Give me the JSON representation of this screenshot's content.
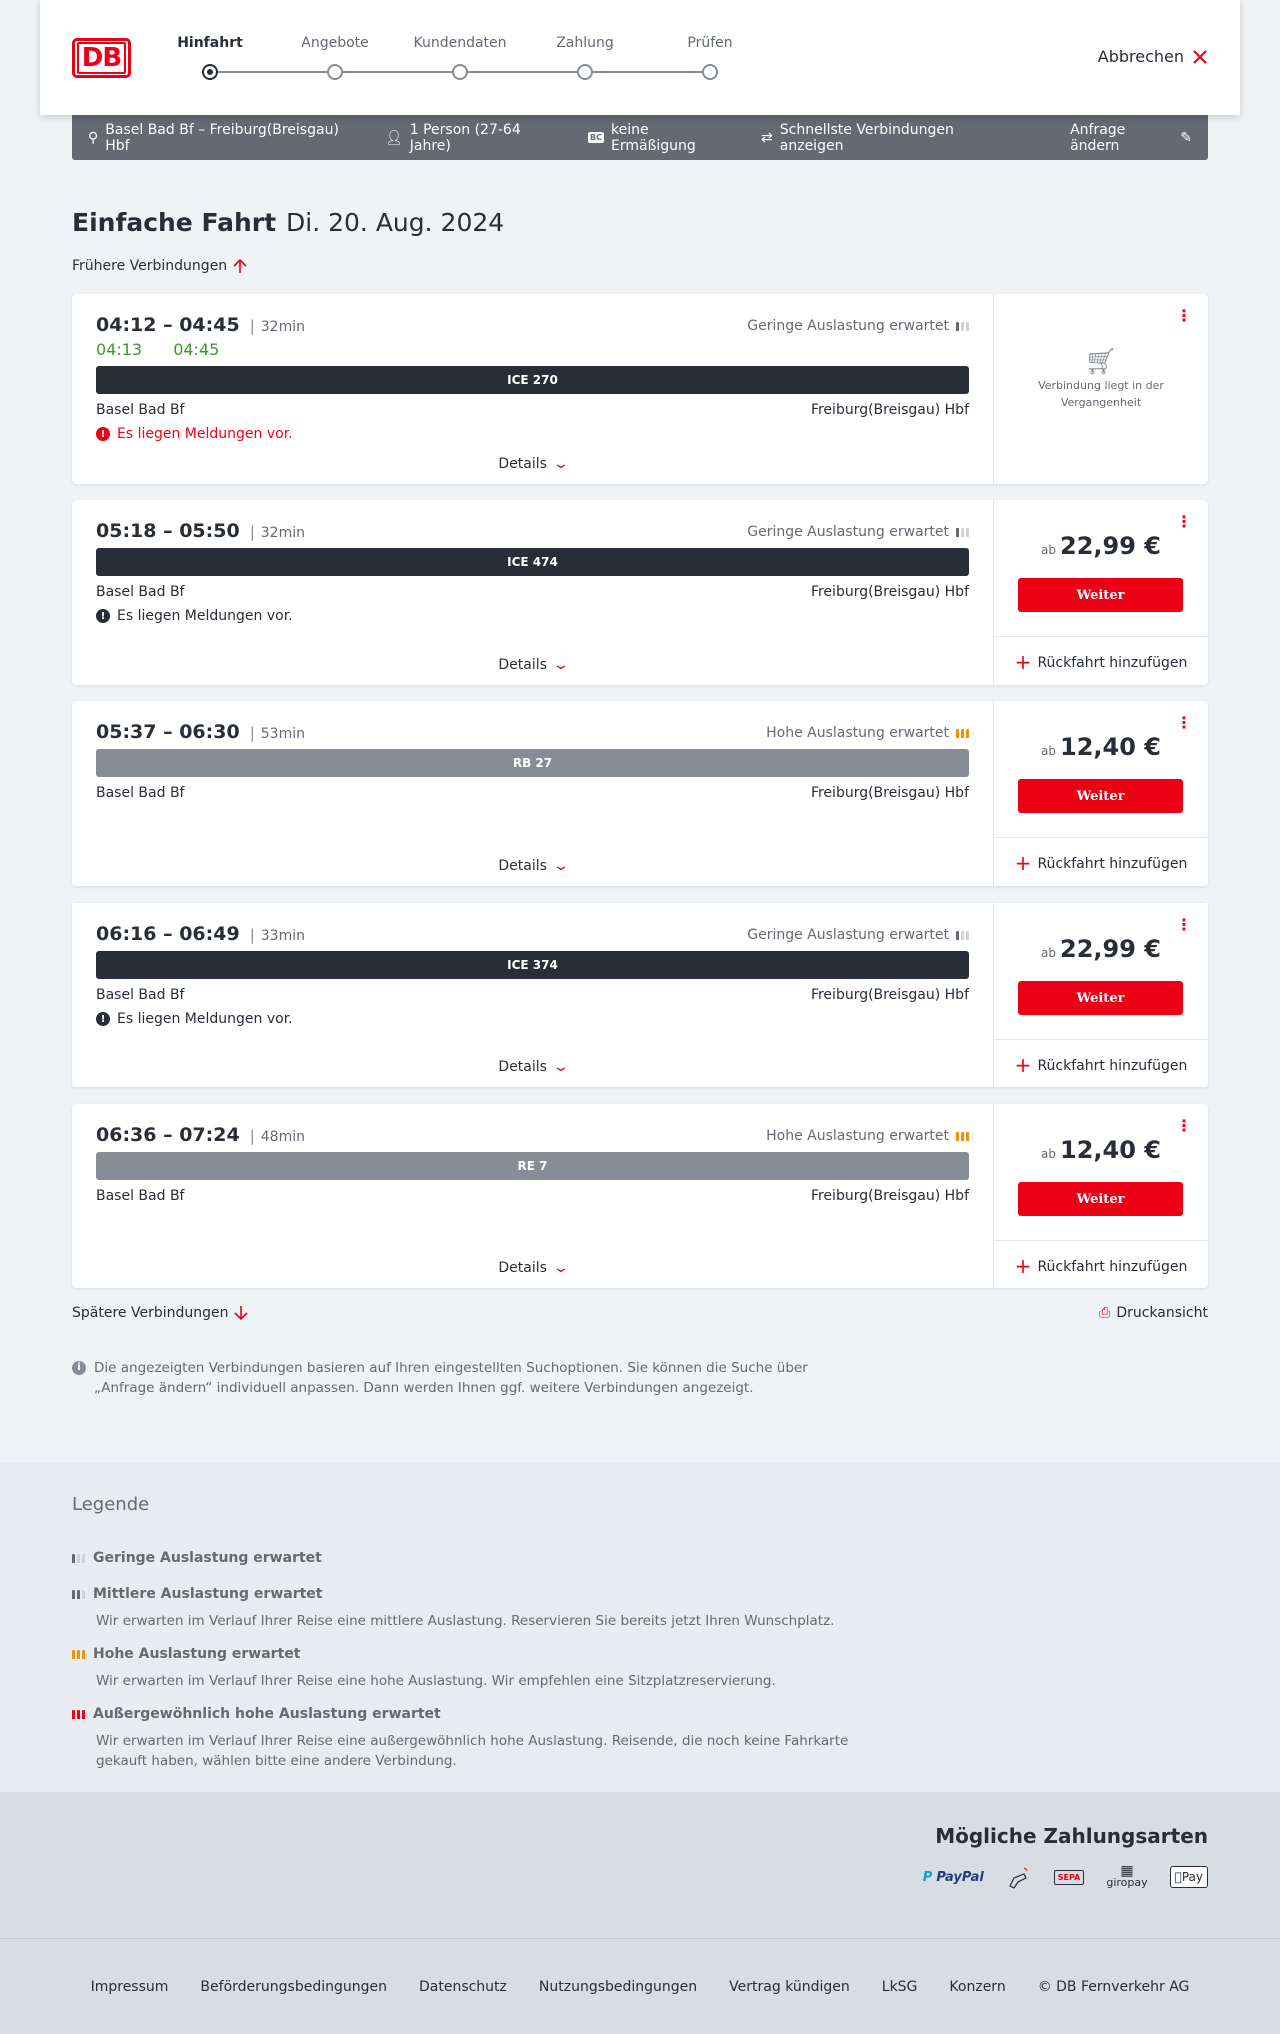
{
  "header": {
    "logo_text": "DB",
    "steps": [
      {
        "label": "Hinfahrt",
        "active": true
      },
      {
        "label": "Angebote",
        "active": false
      },
      {
        "label": "Kundendaten",
        "active": false
      },
      {
        "label": "Zahlung",
        "active": false
      },
      {
        "label": "Prüfen",
        "active": false
      }
    ],
    "cancel_label": "Abbrechen"
  },
  "infobar": {
    "route": "Basel Bad Bf – Freiburg(Breisgau) Hbf",
    "travellers": "1 Person (27-64 Jahre)",
    "discount_icon_text": "BC",
    "discount": "keine Ermäßigung",
    "fastest": "Schnellste Verbindungen anzeigen",
    "change_request": "Anfrage ändern"
  },
  "page": {
    "title": "Einfache Fahrt",
    "date": "Di. 20. Aug. 2024",
    "earlier": "Frühere Verbindungen",
    "later": "Spätere Verbindungen",
    "print": "Druckansicht",
    "info_note": "Die angezeigten Verbindungen basieren auf Ihren eingestellten Suchoptionen. Sie können die Suche über „Anfrage ändern“ individuell anpassen. Dann werden Ihnen ggf. weitere Verbindungen angezeigt."
  },
  "colors": {
    "accent": "#ec0016",
    "dark_bar": "#282d37",
    "regional_bar": "#878c96",
    "on_time": "#3c9a2e",
    "high_load": "#f39200"
  },
  "connections": [
    {
      "times": "04:12 – 04:45",
      "duration": "32min",
      "occupancy": "Geringe Auslastung erwartet",
      "occupancy_level": "low",
      "delay": "04:13 04:45",
      "train": "ICE 270",
      "train_type": "long-distance",
      "from": "Basel Bad Bf",
      "to": "Freiburg(Breisgau) Hbf",
      "message": "Es liegen Meldungen vor.",
      "message_severity": "warning",
      "details": "Details",
      "past": "Verbindung liegt in der Vergangenheit"
    },
    {
      "times": "05:18 – 05:50",
      "duration": "32min",
      "occupancy": "Geringe Auslastung erwartet",
      "occupancy_level": "low",
      "train": "ICE 474",
      "train_type": "long-distance",
      "from": "Basel Bad Bf",
      "to": "Freiburg(Breisgau) Hbf",
      "message": "Es liegen Meldungen vor.",
      "message_severity": "info",
      "details": "Details",
      "price_prefix": "ab",
      "price": "22,99 €",
      "button": "Weiter",
      "return": "Rückfahrt hinzufügen"
    },
    {
      "times": "05:37 – 06:30",
      "duration": "53min",
      "occupancy": "Hohe Auslastung erwartet",
      "occupancy_level": "high",
      "train": "RB 27",
      "train_type": "regional",
      "from": "Basel Bad Bf",
      "to": "Freiburg(Breisgau) Hbf",
      "details": "Details",
      "price_prefix": "ab",
      "price": "12,40 €",
      "button": "Weiter",
      "return": "Rückfahrt hinzufügen"
    },
    {
      "times": "06:16 – 06:49",
      "duration": "33min",
      "occupancy": "Geringe Auslastung erwartet",
      "occupancy_level": "low",
      "train": "ICE 374",
      "train_type": "long-distance",
      "from": "Basel Bad Bf",
      "to": "Freiburg(Breisgau) Hbf",
      "message": "Es liegen Meldungen vor.",
      "message_severity": "info",
      "details": "Details",
      "price_prefix": "ab",
      "price": "22,99 €",
      "button": "Weiter",
      "return": "Rückfahrt hinzufügen"
    },
    {
      "times": "06:36 – 07:24",
      "duration": "48min",
      "occupancy": "Hohe Auslastung erwartet",
      "occupancy_level": "high",
      "train": "RE 7",
      "train_type": "regional",
      "from": "Basel Bad Bf",
      "to": "Freiburg(Breisgau) Hbf",
      "details": "Details",
      "price_prefix": "ab",
      "price": "12,40 €",
      "button": "Weiter",
      "return": "Rückfahrt hinzufügen"
    }
  ],
  "legend": {
    "title": "Legende",
    "items": [
      {
        "level": "low",
        "title": "Geringe Auslastung erwartet",
        "text": ""
      },
      {
        "level": "medium",
        "title": "Mittlere Auslastung erwartet",
        "text": "Wir erwarten im Verlauf Ihrer Reise eine mittlere Auslastung. Reservieren Sie bereits jetzt Ihren Wunschplatz."
      },
      {
        "level": "high",
        "title": "Hohe Auslastung erwartet",
        "text": "Wir erwarten im Verlauf Ihrer Reise eine hohe Auslastung. Wir empfehlen eine Sitzplatzreservierung."
      },
      {
        "level": "exceptional",
        "title": "Außergewöhnlich hohe Auslastung erwartet",
        "text": "Wir erwarten im Verlauf Ihrer Reise eine außergewöhnlich hohe Auslastung. Reisende, die noch keine Fahrkarte gekauft haben, wählen bitte eine andere Verbindung."
      }
    ]
  },
  "payment": {
    "title": "Mögliche Zahlungsarten",
    "methods": [
      "PayPal",
      "contactless-card-icon",
      "SEPA",
      "giropay",
      "Pay"
    ]
  },
  "footer": {
    "links": [
      "Impressum",
      "Beförderungsbedingungen",
      "Datenschutz",
      "Nutzungsbedingungen",
      "Vertrag kündigen",
      "LkSG",
      "Konzern",
      "© DB Fernverkehr AG"
    ]
  }
}
